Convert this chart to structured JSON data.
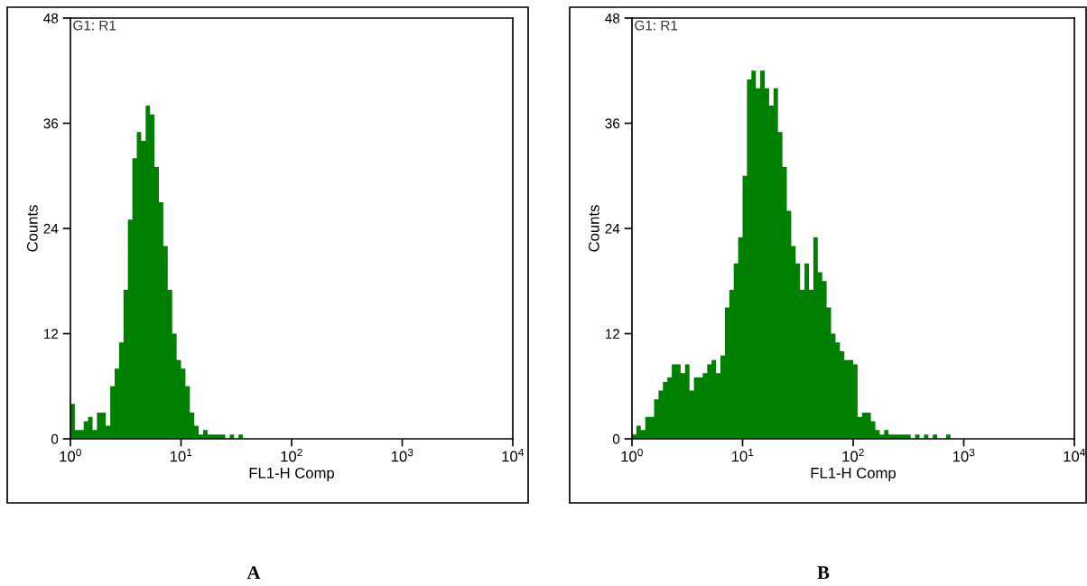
{
  "chart_data": [
    {
      "type": "histogram",
      "title": "A",
      "xlabel": "FL1-H Comp",
      "ylabel": "Counts",
      "annotations": [
        "G1: R1"
      ],
      "color": "#008000",
      "log": "x",
      "xlim": [
        1,
        10000
      ],
      "xticks": [
        {
          "value": 1,
          "label": "10$^{0}$"
        },
        {
          "value": 10,
          "label": "10$^{1}$"
        },
        {
          "value": 100,
          "label": "10$^{2}$"
        },
        {
          "value": 1000,
          "label": "10$^{3}$"
        },
        {
          "value": 10000,
          "label": "10$^{4}$"
        }
      ],
      "ylim": [
        0,
        48
      ],
      "yticks": [
        0,
        12,
        24,
        36,
        48
      ],
      "grid": false,
      "bins": [
        1,
        1.096,
        1.202,
        1.318,
        1.445,
        1.585,
        1.738,
        1.905,
        2.089,
        2.291,
        2.512,
        2.754,
        3.02,
        3.311,
        3.631,
        3.981,
        4.365,
        4.786,
        5.248,
        5.754,
        6.31,
        6.918,
        7.586,
        8.318,
        9.12,
        10,
        10.96,
        12.02,
        13.18,
        14.45,
        15.85,
        17.38,
        19.05,
        20.89,
        22.91,
        25.12,
        27.54,
        30.2,
        33.11,
        36.31
      ],
      "values": [
        4,
        1,
        1,
        2,
        2.5,
        1,
        3,
        3,
        1.5,
        6,
        8,
        11,
        17,
        25,
        32,
        35,
        34,
        38,
        37,
        31,
        27,
        22,
        17,
        12,
        9,
        8,
        6,
        3,
        1.5,
        0.5,
        1,
        0.5,
        0.5,
        0.5,
        0.5,
        0,
        0.5,
        0,
        0.5
      ]
    },
    {
      "type": "histogram",
      "title": "B",
      "xlabel": "FL1-H Comp",
      "ylabel": "Counts",
      "annotations": [
        "G1: R1"
      ],
      "color": "#008000",
      "log": "x",
      "xlim": [
        1,
        10000
      ],
      "xticks": [
        {
          "value": 1,
          "label": "10$^{0}$"
        },
        {
          "value": 10,
          "label": "10$^{1}$"
        },
        {
          "value": 100,
          "label": "10$^{2}$"
        },
        {
          "value": 1000,
          "label": "10$^{3}$"
        },
        {
          "value": 10000,
          "label": "10$^{4}$"
        }
      ],
      "ylim": [
        0,
        48
      ],
      "yticks": [
        0,
        12,
        24,
        36,
        48
      ],
      "grid": false,
      "bins": [
        1,
        1.096,
        1.202,
        1.318,
        1.445,
        1.585,
        1.738,
        1.905,
        2.089,
        2.291,
        2.512,
        2.754,
        3.02,
        3.311,
        3.631,
        3.981,
        4.365,
        4.786,
        5.248,
        5.754,
        6.31,
        6.918,
        7.586,
        8.318,
        9.12,
        10,
        10.96,
        12.02,
        13.18,
        14.45,
        15.85,
        17.38,
        19.05,
        20.89,
        22.91,
        25.12,
        27.54,
        30.2,
        33.11,
        36.31,
        39.81,
        43.65,
        47.86,
        52.48,
        57.54,
        63.1,
        69.18,
        75.86,
        83.18,
        91.2,
        100,
        109.6,
        120.2,
        131.8,
        144.5,
        158.5,
        173.8,
        190.5,
        208.9,
        229.1,
        251.2,
        275.4,
        302,
        331.1,
        363.1,
        398.1,
        436.5,
        478.6,
        524.8,
        575.4,
        631,
        691.8,
        758.6,
        831.8
      ],
      "values": [
        0.5,
        1.5,
        1,
        2.5,
        2.5,
        4.5,
        5.5,
        6.5,
        7,
        8.5,
        8.5,
        7.5,
        8.5,
        5.5,
        7,
        7,
        7.5,
        8.5,
        9,
        7.5,
        9.5,
        15,
        17,
        20,
        23,
        30,
        41,
        42,
        40,
        42,
        40,
        38,
        40,
        35,
        31,
        26,
        22,
        20,
        17,
        20,
        17,
        23,
        19,
        18,
        15,
        12,
        11,
        10,
        9,
        9,
        8.5,
        2.5,
        3,
        3,
        2,
        1,
        0.5,
        1,
        0.5,
        0.5,
        0.5,
        0.5,
        0.5,
        0,
        0.5,
        0,
        0.5,
        0,
        0.5,
        0,
        0,
        0.5,
        0
      ]
    }
  ]
}
